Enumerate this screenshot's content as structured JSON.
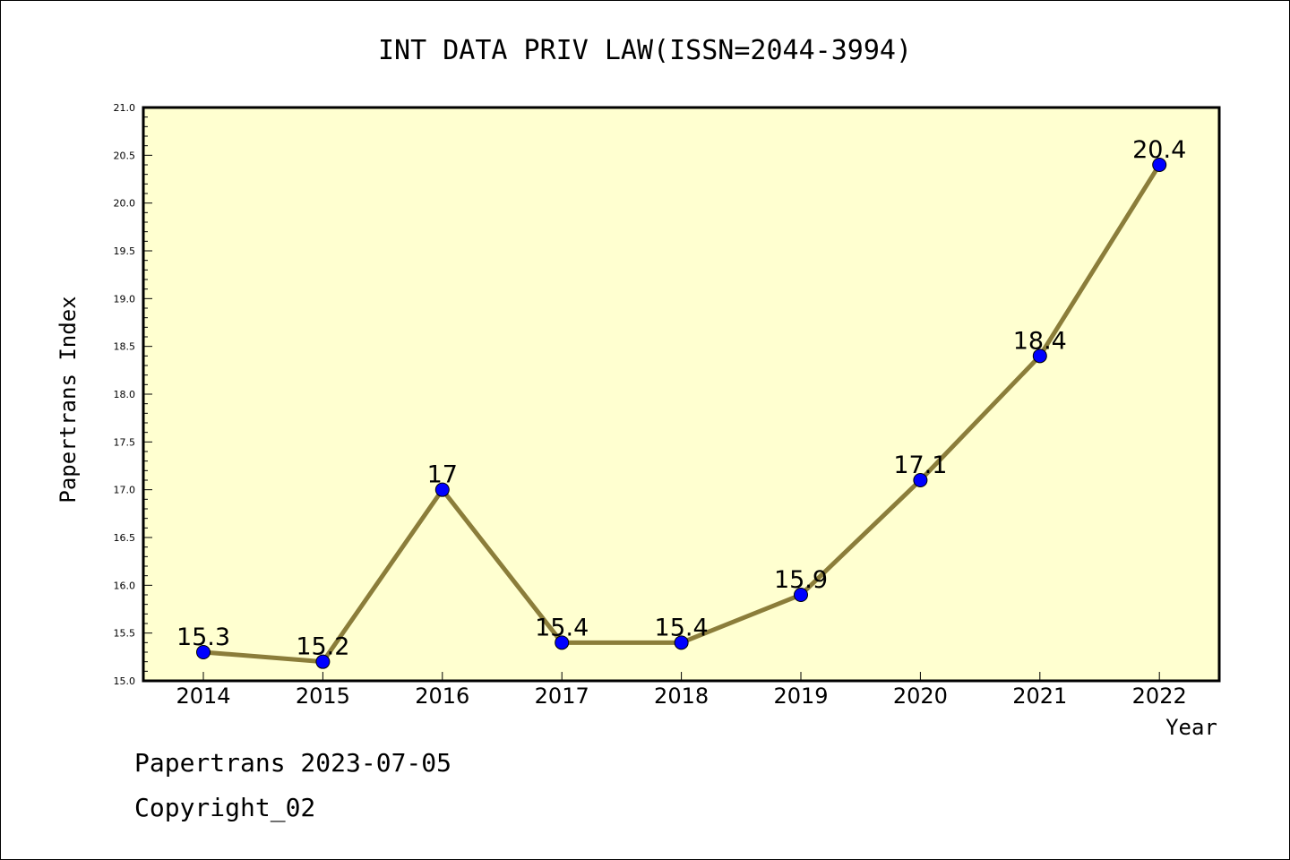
{
  "chart_data": {
    "type": "line",
    "title": "INT DATA PRIV LAW(ISSN=2044-3994)",
    "xlabel": "Year",
    "ylabel": "Papertrans Index",
    "x": [
      "2014",
      "2015",
      "2016",
      "2017",
      "2018",
      "2019",
      "2020",
      "2021",
      "2022"
    ],
    "values": [
      15.3,
      15.2,
      17,
      15.4,
      15.4,
      15.9,
      17.1,
      18.4,
      20.4
    ],
    "data_labels": [
      "15.3",
      "15.2",
      "17",
      "15.4",
      "15.4",
      "15.9",
      "17.1",
      "18.4",
      "20.4"
    ],
    "ylim": [
      15.0,
      21.0
    ],
    "yticks": [
      "15.0",
      "15.5",
      "16.0",
      "16.5",
      "17.0",
      "17.5",
      "18.0",
      "18.5",
      "19.0",
      "19.5",
      "20.0",
      "20.5",
      "21.0"
    ],
    "grid": false,
    "legend": "none",
    "colors": {
      "plot_bg": "#ffffd0",
      "line": "#8b7d3a",
      "marker": "#0000ff"
    }
  },
  "footer": {
    "line1": "Papertrans 2023-07-05",
    "line2": "Copyright_02"
  }
}
